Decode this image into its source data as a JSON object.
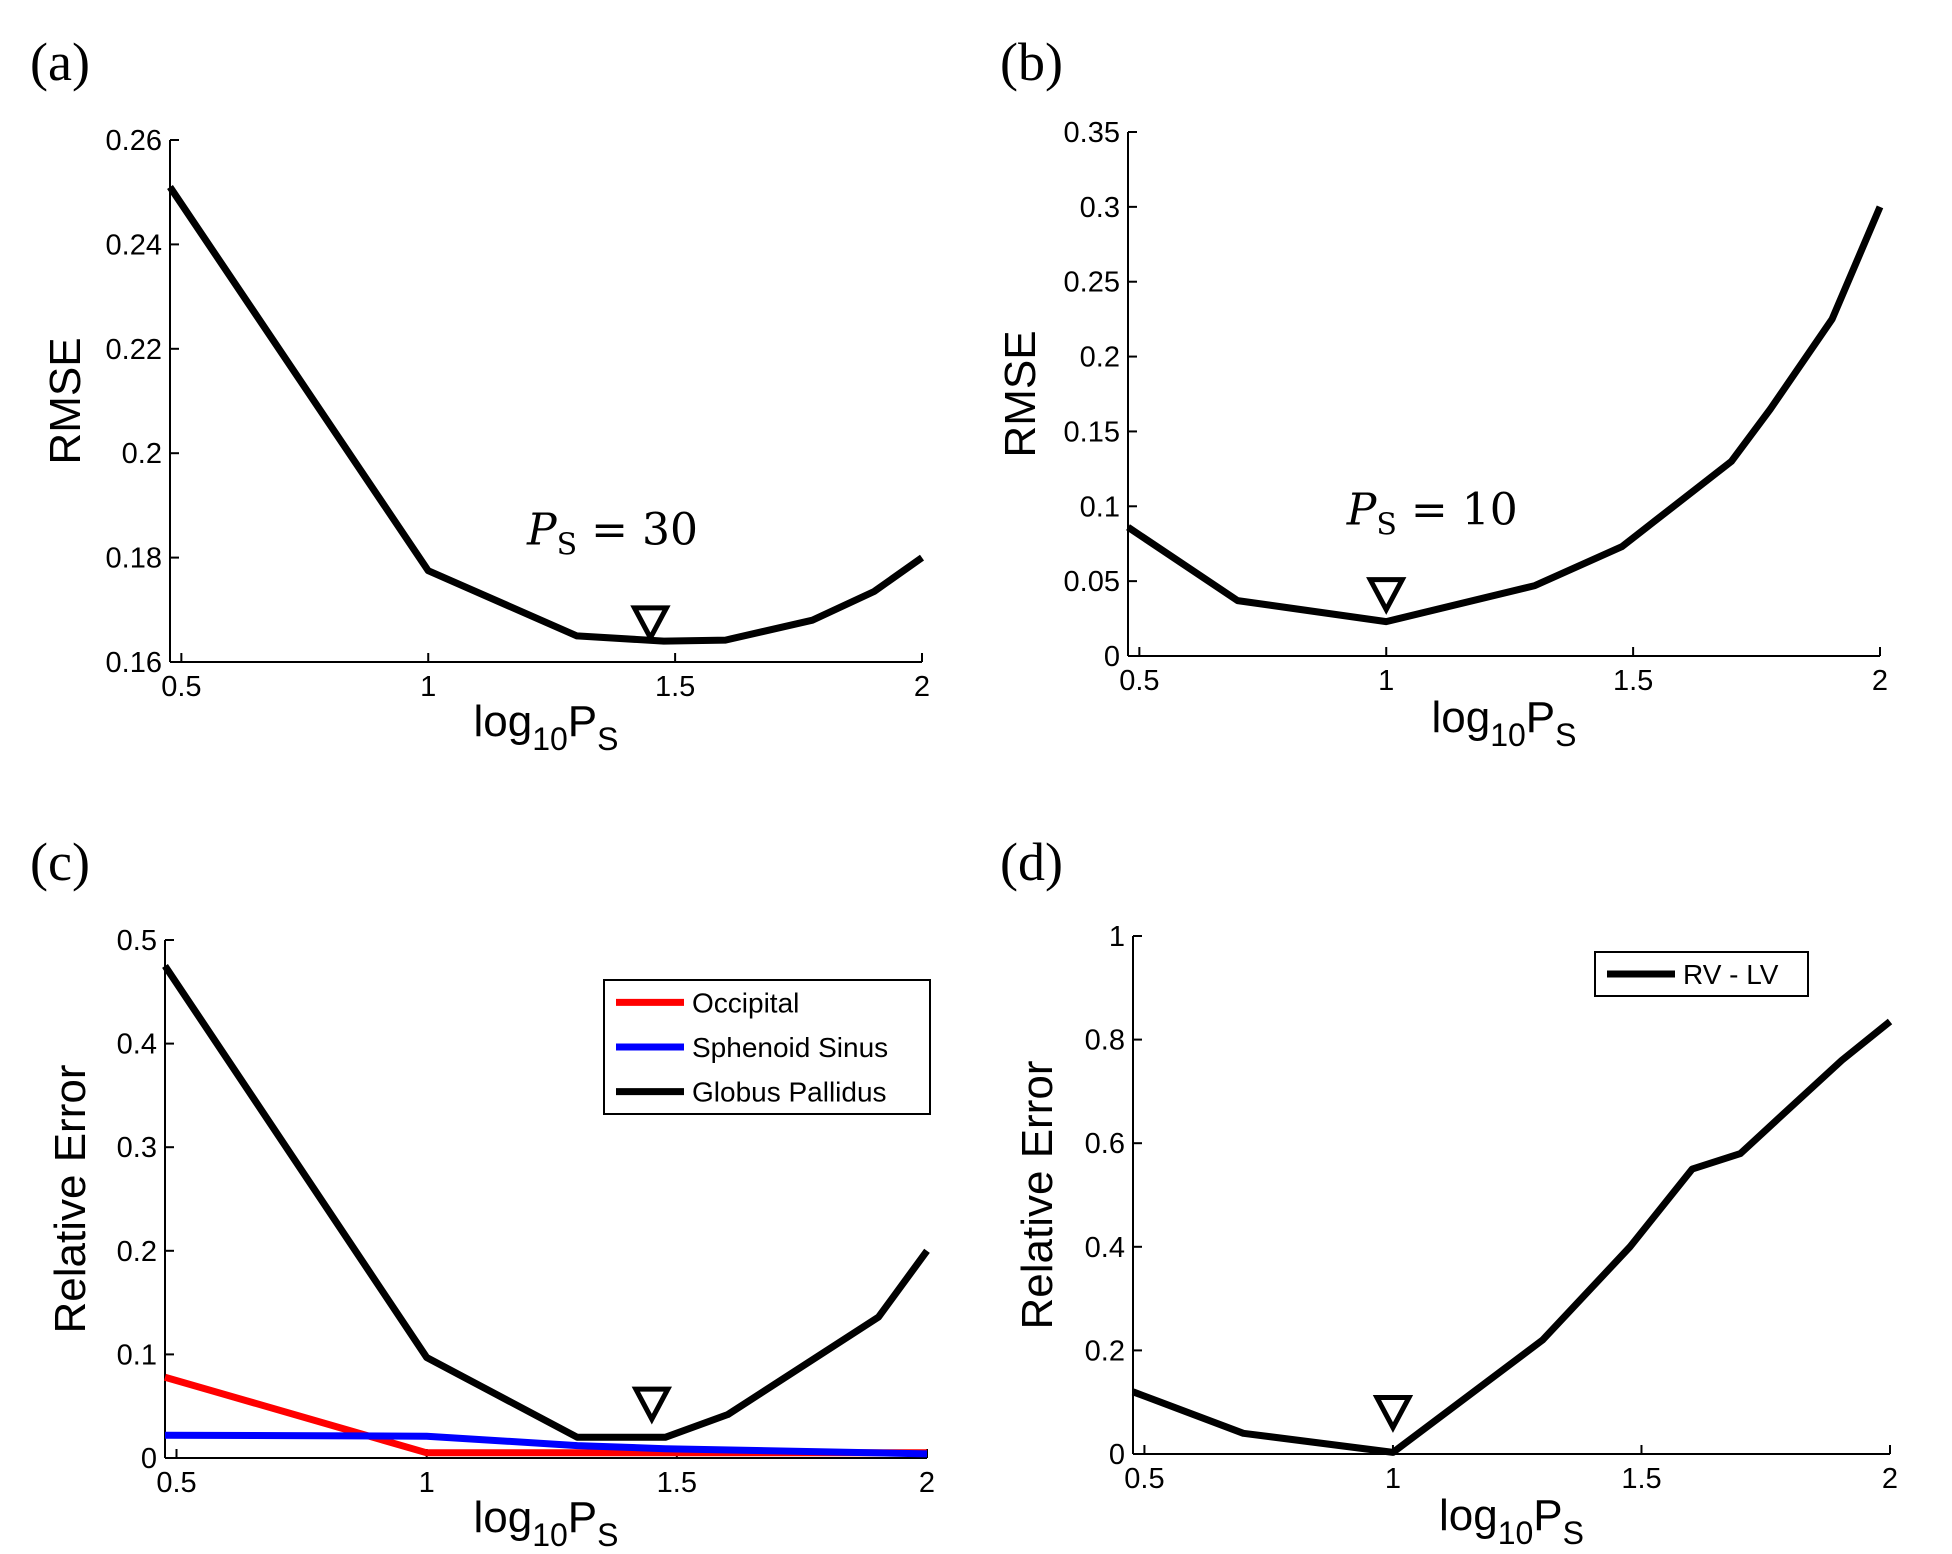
{
  "colors": {
    "black": "#000000",
    "red": "#ff0000",
    "blue": "#0000ff"
  },
  "chart_data": [
    {
      "panel": "(a)",
      "type": "line",
      "xlabel_main": "log",
      "xlabel_sub1": "10",
      "xlabel_mid": "P",
      "xlabel_sub2": "S",
      "ylabel": "RMSE",
      "xlim": [
        0.477,
        2
      ],
      "ylim": [
        0.16,
        0.26
      ],
      "xticks": [
        0.5,
        1,
        1.5,
        2
      ],
      "xtick_labels": [
        "0.5",
        "1",
        "1.5",
        "2"
      ],
      "yticks": [
        0.16,
        0.18,
        0.2,
        0.22,
        0.24,
        0.26
      ],
      "ytick_labels": [
        "0.16",
        "0.18",
        "0.2",
        "0.22",
        "0.24",
        "0.26"
      ],
      "series": [
        {
          "color": "#000000",
          "x": [
            0.477,
            1,
            1.301,
            1.477,
            1.602,
            1.778,
            1.903,
            2
          ],
          "y": [
            0.251,
            0.1775,
            0.165,
            0.164,
            0.1642,
            0.168,
            0.1735,
            0.18
          ]
        }
      ],
      "marker": {
        "x": 1.45,
        "y": 0.1675
      },
      "annotation": {
        "var": "P",
        "sub": "S",
        "rest": " = 30",
        "x": 1.2,
        "y": 0.1825
      },
      "legend": null
    },
    {
      "panel": "(b)",
      "type": "line",
      "xlabel_main": "log",
      "xlabel_sub1": "10",
      "xlabel_mid": "P",
      "xlabel_sub2": "S",
      "ylabel": "RMSE",
      "xlim": [
        0.477,
        2
      ],
      "ylim": [
        0,
        0.35
      ],
      "xticks": [
        0.5,
        1,
        1.5,
        2
      ],
      "xtick_labels": [
        "0.5",
        "1",
        "1.5",
        "2"
      ],
      "yticks": [
        0,
        0.05,
        0.1,
        0.15,
        0.2,
        0.25,
        0.3,
        0.35
      ],
      "ytick_labels": [
        "0",
        "0.05",
        "0.1",
        "0.15",
        "0.2",
        "0.25",
        "0.3",
        "0.35"
      ],
      "series": [
        {
          "color": "#000000",
          "x": [
            0.477,
            0.699,
            1,
            1.301,
            1.477,
            1.699,
            1.778,
            1.903,
            2
          ],
          "y": [
            0.086,
            0.037,
            0.023,
            0.047,
            0.073,
            0.13,
            0.165,
            0.225,
            0.3
          ]
        }
      ],
      "marker": {
        "x": 1.0,
        "y": 0.041
      },
      "annotation": {
        "var": "P",
        "sub": "S",
        "rest": " = 10",
        "x": 0.92,
        "y": 0.088
      },
      "legend": null
    },
    {
      "panel": "(c)",
      "type": "line",
      "xlabel_main": "log",
      "xlabel_sub1": "10",
      "xlabel_mid": "P",
      "xlabel_sub2": "S",
      "ylabel": "Relative Error",
      "xlim": [
        0.477,
        2
      ],
      "ylim": [
        0,
        0.5
      ],
      "xticks": [
        0.5,
        1,
        1.5,
        2
      ],
      "xtick_labels": [
        "0.5",
        "1",
        "1.5",
        "2"
      ],
      "yticks": [
        0,
        0.1,
        0.2,
        0.3,
        0.4,
        0.5
      ],
      "ytick_labels": [
        "0",
        "0.1",
        "0.2",
        "0.3",
        "0.4",
        "0.5"
      ],
      "series": [
        {
          "name": "Occipital",
          "color": "#ff0000",
          "x": [
            0.477,
            1,
            1.301,
            1.477,
            2
          ],
          "y": [
            0.078,
            0.005,
            0.005,
            0.005,
            0.005
          ]
        },
        {
          "name": "Sphenoid Sinus",
          "color": "#0000ff",
          "x": [
            0.477,
            1,
            1.301,
            1.477,
            2
          ],
          "y": [
            0.022,
            0.021,
            0.012,
            0.009,
            0.004
          ]
        },
        {
          "name": "Globus Pallidus",
          "color": "#000000",
          "x": [
            0.477,
            1,
            1.301,
            1.477,
            1.602,
            1.903,
            2
          ],
          "y": [
            0.475,
            0.097,
            0.02,
            0.02,
            0.042,
            0.136,
            0.2
          ]
        }
      ],
      "marker": {
        "x": 1.45,
        "y": 0.052
      },
      "annotation": null,
      "legend": {
        "placement": "top-right",
        "entries": [
          "Occipital",
          "Sphenoid Sinus",
          "Globus Pallidus"
        ]
      }
    },
    {
      "panel": "(d)",
      "type": "line",
      "xlabel_main": "log",
      "xlabel_sub1": "10",
      "xlabel_mid": "P",
      "xlabel_sub2": "S",
      "ylabel": "Relative Error",
      "xlim": [
        0.477,
        2
      ],
      "ylim": [
        0,
        1
      ],
      "xticks": [
        0.5,
        1,
        1.5,
        2
      ],
      "xtick_labels": [
        "0.5",
        "1",
        "1.5",
        "2"
      ],
      "yticks": [
        0,
        0.2,
        0.4,
        0.6,
        0.8,
        1
      ],
      "ytick_labels": [
        "0",
        "0.2",
        "0.4",
        "0.6",
        "0.8",
        "1"
      ],
      "series": [
        {
          "name": "RV - LV",
          "color": "#000000",
          "x": [
            0.477,
            0.699,
            1,
            1.301,
            1.477,
            1.602,
            1.699,
            1.778,
            1.903,
            2
          ],
          "y": [
            0.12,
            0.04,
            0.003,
            0.22,
            0.4,
            0.55,
            0.58,
            0.65,
            0.76,
            0.835
          ]
        }
      ],
      "marker": {
        "x": 1.0,
        "y": 0.08
      },
      "annotation": null,
      "legend": {
        "placement": "top-right",
        "entries": [
          "RV - LV"
        ]
      }
    }
  ]
}
